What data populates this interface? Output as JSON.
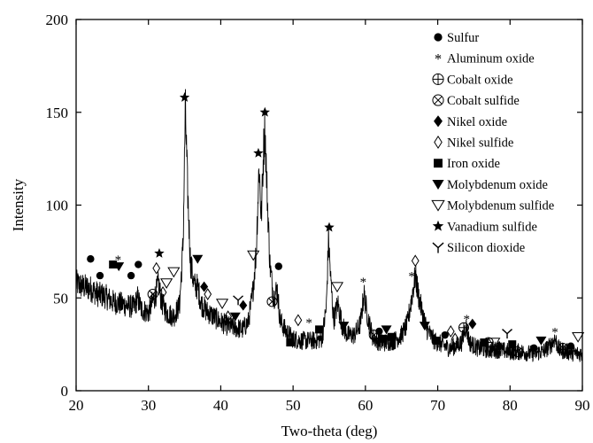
{
  "chart_data": {
    "type": "line",
    "xlabel": "Two-theta (deg)",
    "ylabel": "Intensity",
    "xlim": [
      20,
      90
    ],
    "ylim": [
      0,
      200
    ],
    "xticks": [
      20,
      30,
      40,
      50,
      60,
      70,
      80,
      90
    ],
    "yticks": [
      0,
      50,
      100,
      150,
      200
    ],
    "grid": false,
    "legend_placement": "top-right",
    "series_color": "#000000",
    "profile": [
      [
        20,
        58
      ],
      [
        21,
        56
      ],
      [
        22,
        55
      ],
      [
        23,
        52
      ],
      [
        24,
        51
      ],
      [
        25,
        48
      ],
      [
        26,
        47
      ],
      [
        27,
        46
      ],
      [
        28,
        45
      ],
      [
        28.5,
        50
      ],
      [
        29,
        44
      ],
      [
        30,
        42
      ],
      [
        30.5,
        47
      ],
      [
        31,
        52
      ],
      [
        31.4,
        58
      ],
      [
        31.8,
        48
      ],
      [
        32.5,
        42
      ],
      [
        33.5,
        40
      ],
      [
        34.3,
        46
      ],
      [
        34.8,
        80
      ],
      [
        35.1,
        152
      ],
      [
        35.4,
        110
      ],
      [
        35.8,
        70
      ],
      [
        36.3,
        57
      ],
      [
        36.8,
        56
      ],
      [
        37.3,
        47
      ],
      [
        38,
        43
      ],
      [
        39,
        40
      ],
      [
        40,
        37
      ],
      [
        41,
        35
      ],
      [
        42,
        34
      ],
      [
        43,
        33
      ],
      [
        43.8,
        37
      ],
      [
        44.4,
        52
      ],
      [
        44.9,
        75
      ],
      [
        45.3,
        122
      ],
      [
        45.6,
        92
      ],
      [
        45.9,
        128
      ],
      [
        46.1,
        142
      ],
      [
        46.4,
        108
      ],
      [
        46.8,
        68
      ],
      [
        47.3,
        50
      ],
      [
        47.8,
        55
      ],
      [
        48.2,
        38
      ],
      [
        49,
        32
      ],
      [
        50,
        28
      ],
      [
        51,
        27
      ],
      [
        52,
        27
      ],
      [
        53,
        27
      ],
      [
        54,
        28
      ],
      [
        54.6,
        45
      ],
      [
        54.9,
        82
      ],
      [
        55.2,
        60
      ],
      [
        55.6,
        38
      ],
      [
        56.2,
        47
      ],
      [
        56.8,
        35
      ],
      [
        57.5,
        30
      ],
      [
        58.5,
        30
      ],
      [
        59.3,
        36
      ],
      [
        59.8,
        52
      ],
      [
        60.3,
        40
      ],
      [
        61,
        29
      ],
      [
        62,
        26
      ],
      [
        63,
        26
      ],
      [
        64,
        27
      ],
      [
        65,
        30
      ],
      [
        65.8,
        36
      ],
      [
        66.4,
        50
      ],
      [
        66.9,
        62
      ],
      [
        67.4,
        50
      ],
      [
        68,
        40
      ],
      [
        68.5,
        33
      ],
      [
        69.5,
        27
      ],
      [
        70.5,
        25
      ],
      [
        71.5,
        23
      ],
      [
        72.5,
        24
      ],
      [
        73.3,
        26
      ],
      [
        73.9,
        35
      ],
      [
        74.4,
        26
      ],
      [
        75.5,
        23
      ],
      [
        77,
        22
      ],
      [
        78.5,
        22
      ],
      [
        80,
        21
      ],
      [
        81.5,
        21
      ],
      [
        83,
        20
      ],
      [
        84.5,
        21
      ],
      [
        85.5,
        24
      ],
      [
        86.2,
        28
      ],
      [
        86.8,
        22
      ],
      [
        88,
        21
      ],
      [
        89,
        20
      ],
      [
        90,
        20
      ]
    ],
    "legend": [
      {
        "marker": "dot",
        "label": "Sulfur"
      },
      {
        "marker": "asterisk",
        "label": "Aluminum oxide"
      },
      {
        "marker": "circle-plus",
        "label": "Cobalt oxide"
      },
      {
        "marker": "circle-x",
        "label": "Cobalt sulfide"
      },
      {
        "marker": "diamond-filled",
        "label": "Nikel oxide"
      },
      {
        "marker": "diamond-open",
        "label": "Nikel sulfide"
      },
      {
        "marker": "square-filled",
        "label": "Iron oxide"
      },
      {
        "marker": "triangle-down-filled",
        "label": "Molybdenum oxide"
      },
      {
        "marker": "triangle-down-open",
        "label": "Molybdenum sulfide"
      },
      {
        "marker": "star-filled",
        "label": "Vanadium sulfide"
      },
      {
        "marker": "y-tri",
        "label": "Silicon dioxide"
      }
    ],
    "annotations": [
      {
        "x": 22.0,
        "y": 71,
        "marker": "dot"
      },
      {
        "x": 23.3,
        "y": 62,
        "marker": "dot"
      },
      {
        "x": 25.1,
        "y": 68,
        "marker": "square-filled"
      },
      {
        "x": 25.8,
        "y": 71,
        "marker": "asterisk"
      },
      {
        "x": 25.9,
        "y": 67,
        "marker": "triangle-down-filled"
      },
      {
        "x": 27.6,
        "y": 62,
        "marker": "dot"
      },
      {
        "x": 28.6,
        "y": 68,
        "marker": "dot"
      },
      {
        "x": 30.6,
        "y": 52,
        "marker": "circle-x"
      },
      {
        "x": 31.1,
        "y": 66,
        "marker": "diamond-open"
      },
      {
        "x": 31.5,
        "y": 74,
        "marker": "star-filled"
      },
      {
        "x": 32.0,
        "y": 53,
        "marker": "diamond-open"
      },
      {
        "x": 32.5,
        "y": 58,
        "marker": "triangle-down-open"
      },
      {
        "x": 33.5,
        "y": 64,
        "marker": "triangle-down-open"
      },
      {
        "x": 35.0,
        "y": 158,
        "marker": "star-filled"
      },
      {
        "x": 36.8,
        "y": 71,
        "marker": "triangle-down-filled"
      },
      {
        "x": 37.7,
        "y": 56,
        "marker": "diamond-filled"
      },
      {
        "x": 38.2,
        "y": 52,
        "marker": "diamond-open"
      },
      {
        "x": 40.2,
        "y": 47,
        "marker": "triangle-down-open"
      },
      {
        "x": 41.0,
        "y": 40,
        "marker": "diamond-open"
      },
      {
        "x": 42.0,
        "y": 40,
        "marker": "triangle-down-filled"
      },
      {
        "x": 42.4,
        "y": 49,
        "marker": "y-tri"
      },
      {
        "x": 43.1,
        "y": 46,
        "marker": "diamond-filled"
      },
      {
        "x": 44.5,
        "y": 73,
        "marker": "triangle-down-open"
      },
      {
        "x": 45.2,
        "y": 128,
        "marker": "star-filled"
      },
      {
        "x": 46.1,
        "y": 150,
        "marker": "star-filled"
      },
      {
        "x": 47.1,
        "y": 48,
        "marker": "circle-x"
      },
      {
        "x": 48.0,
        "y": 67,
        "marker": "dot"
      },
      {
        "x": 49.6,
        "y": 26,
        "marker": "square-filled"
      },
      {
        "x": 50.7,
        "y": 38,
        "marker": "diamond-open"
      },
      {
        "x": 52.2,
        "y": 37,
        "marker": "asterisk"
      },
      {
        "x": 53.6,
        "y": 33,
        "marker": "square-filled"
      },
      {
        "x": 55.0,
        "y": 88,
        "marker": "star-filled"
      },
      {
        "x": 56.1,
        "y": 56,
        "marker": "triangle-down-open"
      },
      {
        "x": 57.0,
        "y": 35,
        "marker": "triangle-down-filled"
      },
      {
        "x": 59.7,
        "y": 59,
        "marker": "asterisk"
      },
      {
        "x": 61.2,
        "y": 30,
        "marker": "circle-x"
      },
      {
        "x": 61.9,
        "y": 32,
        "marker": "dot"
      },
      {
        "x": 62.4,
        "y": 28,
        "marker": "square-filled"
      },
      {
        "x": 62.9,
        "y": 33,
        "marker": "triangle-down-filled"
      },
      {
        "x": 63.6,
        "y": 29,
        "marker": "square-filled"
      },
      {
        "x": 66.4,
        "y": 62,
        "marker": "asterisk"
      },
      {
        "x": 66.9,
        "y": 70,
        "marker": "diamond-open"
      },
      {
        "x": 68.2,
        "y": 35,
        "marker": "triangle-down-filled"
      },
      {
        "x": 69.9,
        "y": 27,
        "marker": "square-filled"
      },
      {
        "x": 71.0,
        "y": 30,
        "marker": "dot"
      },
      {
        "x": 71.8,
        "y": 32,
        "marker": "diamond-open"
      },
      {
        "x": 72.4,
        "y": 28,
        "marker": "diamond-open"
      },
      {
        "x": 73.6,
        "y": 34,
        "marker": "circle-plus"
      },
      {
        "x": 74.0,
        "y": 39,
        "marker": "asterisk"
      },
      {
        "x": 74.8,
        "y": 36,
        "marker": "diamond-filled"
      },
      {
        "x": 76.4,
        "y": 26,
        "marker": "square-filled"
      },
      {
        "x": 77.0,
        "y": 26,
        "marker": "circle-plus"
      },
      {
        "x": 77.8,
        "y": 26,
        "marker": "triangle-down-open"
      },
      {
        "x": 78.5,
        "y": 24,
        "marker": "diamond-filled"
      },
      {
        "x": 79.6,
        "y": 31,
        "marker": "y-tri"
      },
      {
        "x": 80.3,
        "y": 25,
        "marker": "square-filled"
      },
      {
        "x": 81.0,
        "y": 21,
        "marker": "circle-x"
      },
      {
        "x": 83.3,
        "y": 23,
        "marker": "dot"
      },
      {
        "x": 84.3,
        "y": 27,
        "marker": "triangle-down-filled"
      },
      {
        "x": 85.4,
        "y": 25,
        "marker": "asterisk"
      },
      {
        "x": 86.2,
        "y": 32,
        "marker": "asterisk"
      },
      {
        "x": 87.3,
        "y": 23,
        "marker": "circle-x"
      },
      {
        "x": 88.4,
        "y": 24,
        "marker": "dot"
      },
      {
        "x": 89.4,
        "y": 29,
        "marker": "triangle-down-open"
      }
    ]
  }
}
